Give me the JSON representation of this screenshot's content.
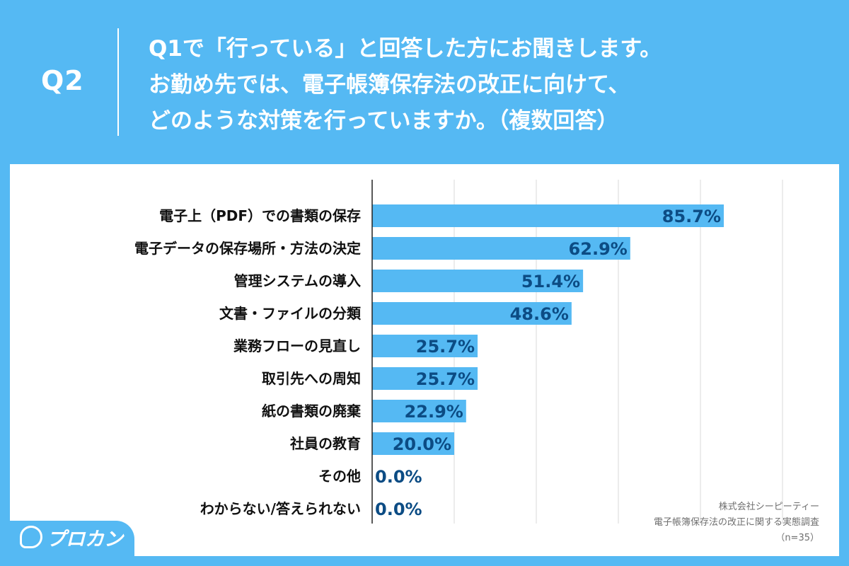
{
  "header": {
    "label": "Q2",
    "lines": [
      "Q1で「行っている」と回答した方にお聞きします。",
      "お勤め先では、電子帳簿保存法の改正に向けて、",
      "どのような対策を行っていますか。（複数回答）"
    ]
  },
  "chart_data": {
    "type": "bar",
    "orientation": "horizontal",
    "categories": [
      "電子上（PDF）での書類の保存",
      "電子データの保存場所・方法の決定",
      "管理システムの導入",
      "文書・ファイルの分類",
      "業務フローの見直し",
      "取引先への周知",
      "紙の書類の廃棄",
      "社員の教育",
      "その他",
      "わからない/答えられない"
    ],
    "values": [
      85.7,
      62.9,
      51.4,
      48.6,
      25.7,
      25.7,
      22.9,
      20.0,
      0.0,
      0.0
    ],
    "value_labels": [
      "85.7%",
      "62.9%",
      "51.4%",
      "48.6%",
      "25.7%",
      "25.7%",
      "22.9%",
      "20.0%",
      "0.0%",
      "0.0%"
    ],
    "xlim": [
      0,
      100
    ],
    "grid": true,
    "bar_color": "#55b9f3",
    "label_color": "#0c4c84"
  },
  "source": {
    "company": "株式会社シーピーティー",
    "survey": "電子帳簿保存法の改正に関する実態調査",
    "sample": "（n=35）"
  },
  "logo": {
    "text": "プロカン"
  },
  "colors": {
    "background": "#55b9f3",
    "panel": "#ffffff",
    "grid": "#d9d9d9"
  }
}
